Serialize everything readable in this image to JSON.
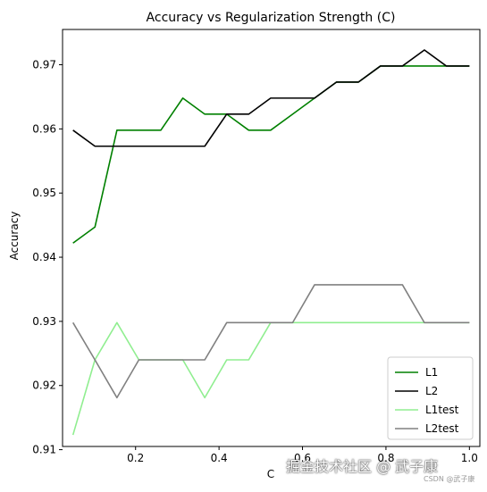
{
  "chart_data": {
    "type": "line",
    "title": "Accuracy vs Regularization Strength (C)",
    "xlabel": "C",
    "ylabel": "Accuracy",
    "xlim": [
      0.025,
      1.025
    ],
    "ylim": [
      0.9105,
      0.9755
    ],
    "x_ticks": [
      0.2,
      0.4,
      0.6,
      0.8,
      1.0
    ],
    "x_tick_labels": [
      "0.2",
      "0.4",
      "0.6",
      "0.8",
      "1.0"
    ],
    "y_ticks": [
      0.91,
      0.92,
      0.93,
      0.94,
      0.95,
      0.96,
      0.97
    ],
    "y_tick_labels": [
      "0.91",
      "0.92",
      "0.93",
      "0.94",
      "0.95",
      "0.96",
      "0.97"
    ],
    "grid": false,
    "legend_position": "lower-right",
    "x": [
      0.05,
      0.1026,
      0.1553,
      0.2079,
      0.2605,
      0.3132,
      0.3658,
      0.4184,
      0.4711,
      0.5237,
      0.5763,
      0.6289,
      0.6816,
      0.7342,
      0.7868,
      0.8395,
      0.8921,
      0.9447,
      1.0
    ],
    "series": [
      {
        "name": "L1",
        "color": "#008000",
        "values": [
          0.9422,
          0.9447,
          0.9598,
          0.9598,
          0.9598,
          0.9648,
          0.9623,
          0.9623,
          0.9598,
          0.9598,
          0.9623,
          0.9648,
          0.9673,
          0.9673,
          0.9698,
          0.9698,
          0.9698,
          0.9698,
          0.9698
        ]
      },
      {
        "name": "L2",
        "color": "#000000",
        "values": [
          0.9598,
          0.9573,
          0.9573,
          0.9573,
          0.9573,
          0.9573,
          0.9573,
          0.9623,
          0.9623,
          0.9648,
          0.9648,
          0.9648,
          0.9673,
          0.9673,
          0.9698,
          0.9698,
          0.9723,
          0.9698,
          0.9698
        ]
      },
      {
        "name": "L1test",
        "color": "#90ee90",
        "values": [
          0.9123,
          0.924,
          0.9298,
          0.924,
          0.924,
          0.924,
          0.9181,
          0.924,
          0.924,
          0.9298,
          0.9298,
          0.9298,
          0.9298,
          0.9298,
          0.9298,
          0.9298,
          0.9298,
          0.9298,
          0.9298
        ]
      },
      {
        "name": "L2test",
        "color": "#808080",
        "values": [
          0.9298,
          0.924,
          0.9181,
          0.924,
          0.924,
          0.924,
          0.924,
          0.9298,
          0.9298,
          0.9298,
          0.9298,
          0.9357,
          0.9357,
          0.9357,
          0.9357,
          0.9357,
          0.9298,
          0.9298,
          0.9298
        ]
      }
    ]
  },
  "watermark": {
    "main": "掘金技术社区 @ 武子康",
    "small": "CSDN @武子康"
  }
}
